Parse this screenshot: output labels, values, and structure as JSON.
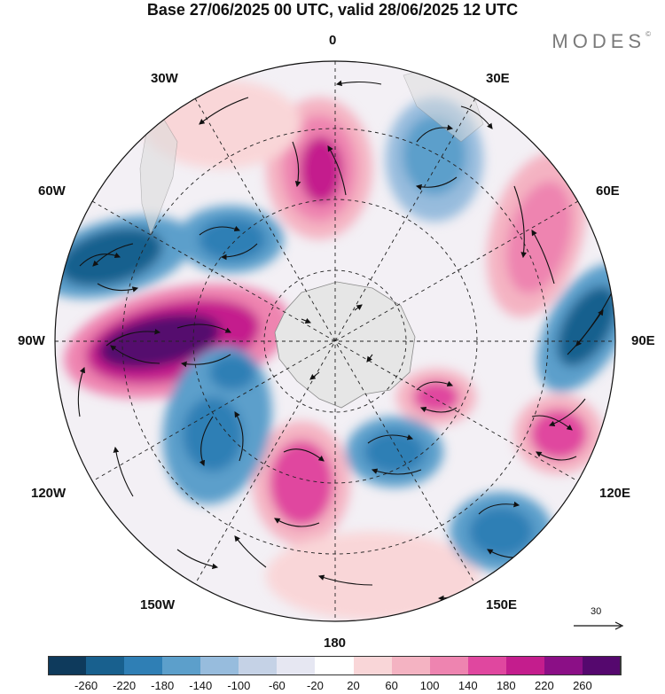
{
  "title": "Base 27/06/2025 00 UTC, valid 28/06/2025 12 UTC",
  "brand": "MODES",
  "brand_mark": "©",
  "longitude_labels": {
    "top": "0",
    "bottom": "180",
    "left": "90W",
    "right": "90E",
    "nw30": "30W",
    "ne30": "30E",
    "nw60": "60W",
    "ne60": "60E",
    "sw120": "120W",
    "se120": "120E",
    "sw150": "150W",
    "se150": "150E"
  },
  "reference_vector_label": "30",
  "colorbar": {
    "colors": [
      "#0e3a5c",
      "#18608e",
      "#2f7fb5",
      "#5c9fcb",
      "#97bcdd",
      "#c5d2e6",
      "#e6e7f2",
      "#ffffff",
      "#f9d6d8",
      "#f4b3c2",
      "#ee84b0",
      "#e0479f",
      "#c41d8d",
      "#8b0f86",
      "#55086e"
    ],
    "labels": [
      "-260",
      "-220",
      "-180",
      "-140",
      "-100",
      "-60",
      "-20",
      "20",
      "60",
      "100",
      "140",
      "180",
      "220",
      "260"
    ]
  }
}
